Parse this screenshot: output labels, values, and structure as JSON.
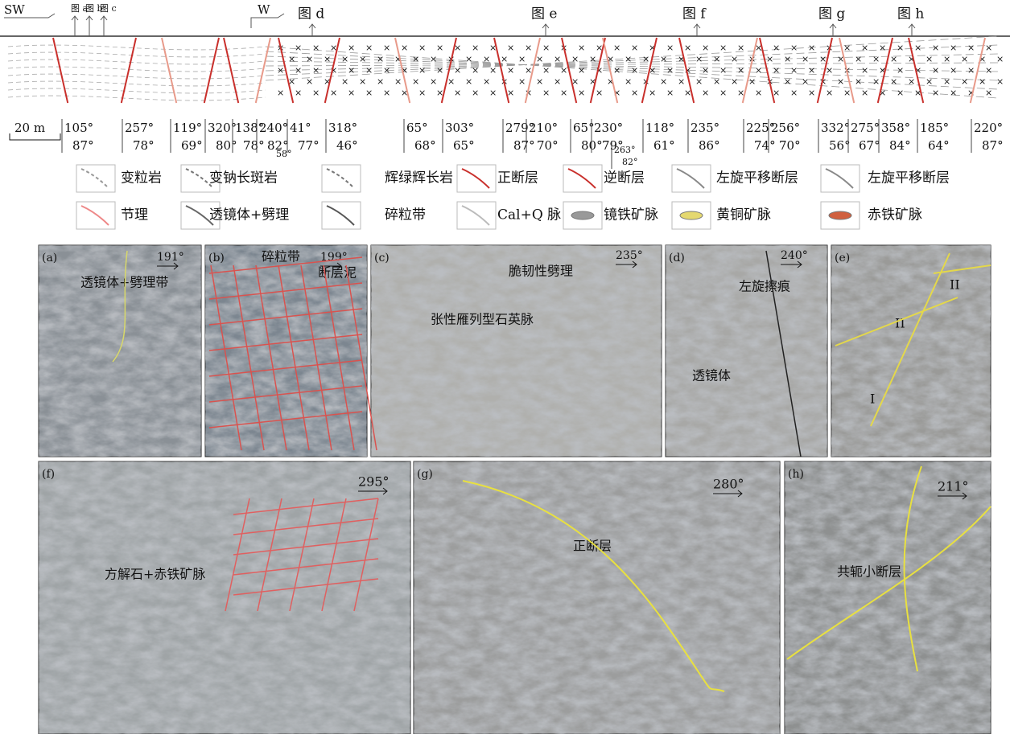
{
  "section": {
    "left_label": "SW",
    "mid_label": "W",
    "photo_refs": [
      "图 a",
      "图 b",
      "图 c",
      "图 d",
      "图 e",
      "图 f",
      "图 g",
      "图 h"
    ],
    "scale": "20 m",
    "attitudes": [
      [
        "105°",
        "87°"
      ],
      [
        "257°",
        "78°"
      ],
      [
        "119°",
        "69°"
      ],
      [
        "320°",
        "80°"
      ],
      [
        "138°",
        "78°"
      ],
      [
        "240°",
        "82°"
      ],
      [
        "41°",
        "77°"
      ],
      [
        "318°",
        "46°"
      ],
      [
        "65°",
        "68°"
      ],
      [
        "303°",
        "65°"
      ],
      [
        "279°",
        "87°"
      ],
      [
        "210°",
        "70°"
      ],
      [
        "65°",
        "80°"
      ],
      [
        "230°",
        "79°"
      ],
      [
        "263°",
        "82°"
      ],
      [
        "118°",
        "61°"
      ],
      [
        "235°",
        "86°"
      ],
      [
        "225°",
        "74°"
      ],
      [
        "256°",
        "70°"
      ],
      [
        "332°",
        "56°"
      ],
      [
        "275°",
        "67°"
      ],
      [
        "358°",
        "84°"
      ],
      [
        "185°",
        "64°"
      ],
      [
        "220°",
        "87°"
      ]
    ],
    "extra_dip": "58°"
  },
  "legend": [
    "变粒岩",
    "变钠长斑岩",
    "辉绿辉长岩",
    "正断层",
    "逆断层",
    "左旋平移断层",
    "左旋平移断层",
    "节理",
    "透镜体+劈理",
    "碎粒带",
    "Cal+Q 脉",
    "镜铁矿脉",
    "黄铜矿脉",
    "赤铁矿脉"
  ],
  "panels": [
    {
      "label": "(a)",
      "azimuth": "191°",
      "notes": [
        "透镜体+劈理带"
      ]
    },
    {
      "label": "(b)",
      "azimuth": "199°",
      "notes": [
        "碎粒带",
        "断层泥"
      ]
    },
    {
      "label": "(c)",
      "azimuth": "235°",
      "notes": [
        "脆韧性劈理",
        "张性雁列型石英脉"
      ]
    },
    {
      "label": "(d)",
      "azimuth": "240°",
      "notes": [
        "左旋擦痕",
        "透镜体"
      ]
    },
    {
      "label": "(e)",
      "notes": [
        "II",
        "II",
        "I"
      ]
    },
    {
      "label": "(f)",
      "azimuth": "295°",
      "notes": [
        "方解石+赤铁矿脉"
      ]
    },
    {
      "label": "(g)",
      "azimuth": "280°",
      "notes": [
        "正断层"
      ]
    },
    {
      "label": "(h)",
      "azimuth": "211°",
      "notes": [
        "共轭小断层"
      ]
    }
  ]
}
